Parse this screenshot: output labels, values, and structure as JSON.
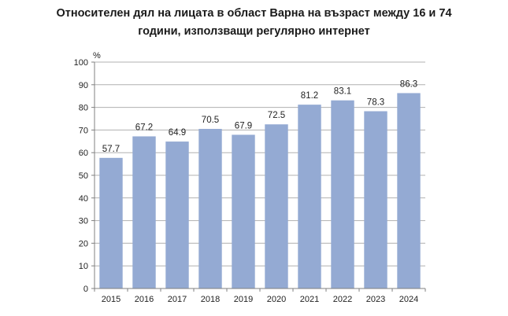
{
  "chart_data": {
    "type": "bar",
    "title_lines": [
      "Относителен дял на лицата в област Варна на възраст между 16 и 74",
      "години, използващи регулярно интернет"
    ],
    "unit_label": "%",
    "categories": [
      "2015",
      "2016",
      "2017",
      "2018",
      "2019",
      "2020",
      "2021",
      "2022",
      "2023",
      "2024"
    ],
    "values": [
      57.7,
      67.2,
      64.9,
      70.5,
      67.9,
      72.5,
      81.2,
      83.1,
      78.3,
      86.3
    ],
    "data_labels": [
      "57.7",
      "67.2",
      "64.9",
      "70.5",
      "67.9",
      "72.5",
      "81.2",
      "83.1",
      "78.3",
      "86.3"
    ],
    "ylim": [
      0,
      100
    ],
    "yticks": [
      "0",
      "10",
      "20",
      "30",
      "40",
      "50",
      "60",
      "70",
      "80",
      "90",
      "100"
    ],
    "grid": true,
    "bar_color": "#94aad3",
    "grid_color": "#b0b0b0"
  }
}
